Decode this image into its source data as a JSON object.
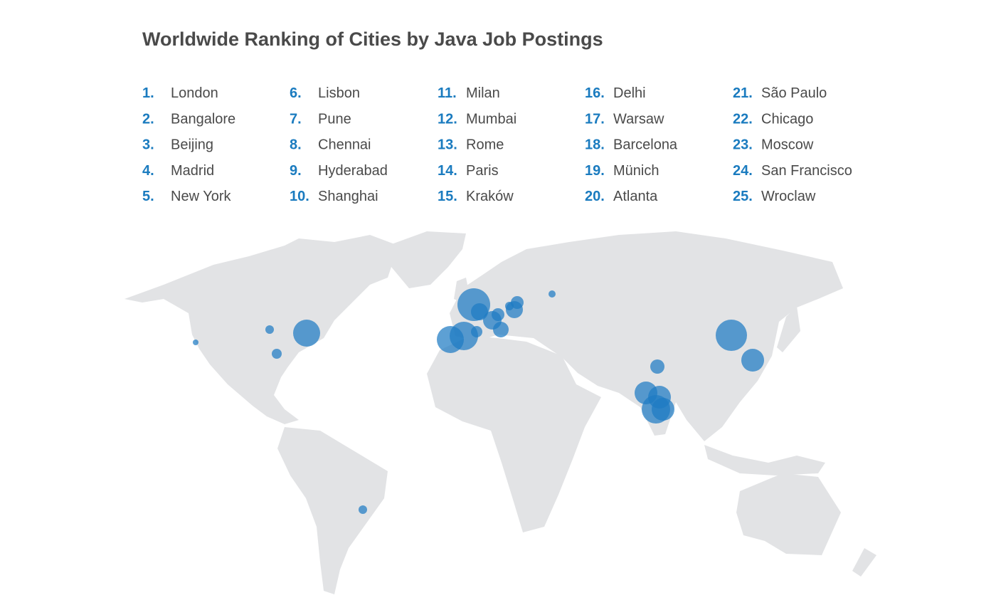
{
  "title": "Worldwide Ranking of Cities by Java Job Postings",
  "rankings": [
    {
      "rank": "1.",
      "city": "London"
    },
    {
      "rank": "2.",
      "city": "Bangalore"
    },
    {
      "rank": "3.",
      "city": "Beijing"
    },
    {
      "rank": "4.",
      "city": "Madrid"
    },
    {
      "rank": "5.",
      "city": "New York"
    },
    {
      "rank": "6.",
      "city": "Lisbon"
    },
    {
      "rank": "7.",
      "city": "Pune"
    },
    {
      "rank": "8.",
      "city": "Chennai"
    },
    {
      "rank": "9.",
      "city": "Hyderabad"
    },
    {
      "rank": "10.",
      "city": "Shanghai"
    },
    {
      "rank": "11.",
      "city": "Milan"
    },
    {
      "rank": "12.",
      "city": "Mumbai"
    },
    {
      "rank": "13.",
      "city": "Rome"
    },
    {
      "rank": "14.",
      "city": "Paris"
    },
    {
      "rank": "15.",
      "city": "Kraków"
    },
    {
      "rank": "16.",
      "city": "Delhi"
    },
    {
      "rank": "17.",
      "city": "Warsaw"
    },
    {
      "rank": "18.",
      "city": "Barcelona"
    },
    {
      "rank": "19.",
      "city": "Münich"
    },
    {
      "rank": "20.",
      "city": "Atlanta"
    },
    {
      "rank": "21.",
      "city": "São Paulo"
    },
    {
      "rank": "22.",
      "city": "Chicago"
    },
    {
      "rank": "23.",
      "city": "Moscow"
    },
    {
      "rank": "24.",
      "city": "San Francisco"
    },
    {
      "rank": "25.",
      "city": "Wroclaw"
    }
  ]
}
